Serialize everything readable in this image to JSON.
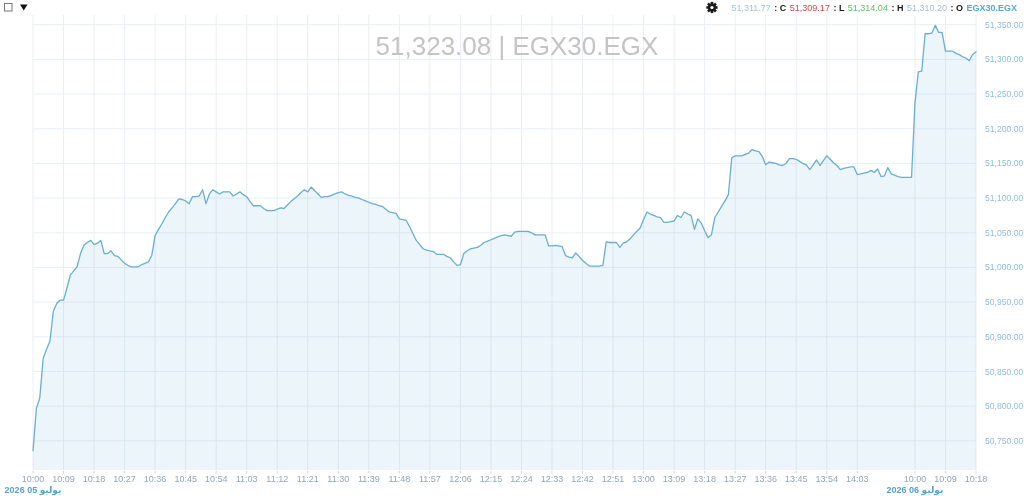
{
  "chart_data": {
    "type": "area",
    "title": "51,323.08 | EGX30.EGX",
    "categories": [
      "10:00\n2026 05 يوليو",
      null,
      null,
      null,
      null,
      null,
      null,
      null,
      null,
      "10:09",
      null,
      null,
      null,
      null,
      null,
      null,
      null,
      null,
      "10:18",
      null,
      null,
      null,
      null,
      null,
      null,
      null,
      null,
      "10:27",
      null,
      null,
      null,
      null,
      null,
      null,
      null,
      null,
      "10:36",
      null,
      null,
      null,
      null,
      null,
      null,
      null,
      null,
      "10:45",
      null,
      null,
      null,
      null,
      null,
      null,
      null,
      null,
      "10:54",
      null,
      null,
      null,
      null,
      null,
      null,
      null,
      null,
      "11:03",
      null,
      null,
      null,
      null,
      null,
      null,
      null,
      null,
      "11:12",
      null,
      null,
      null,
      null,
      null,
      null,
      null,
      null,
      "11:21",
      null,
      null,
      null,
      null,
      null,
      null,
      null,
      null,
      "11:30",
      null,
      null,
      null,
      null,
      null,
      null,
      null,
      null,
      "11:39",
      null,
      null,
      null,
      null,
      null,
      null,
      null,
      null,
      "11:48",
      null,
      null,
      null,
      null,
      null,
      null,
      null,
      null,
      "11:57",
      null,
      null,
      null,
      null,
      null,
      null,
      null,
      null,
      "12:06",
      null,
      null,
      null,
      null,
      null,
      null,
      null,
      null,
      "12:15",
      null,
      null,
      null,
      null,
      null,
      null,
      null,
      null,
      "12:24",
      null,
      null,
      null,
      null,
      null,
      null,
      null,
      null,
      "12:33",
      null,
      null,
      null,
      null,
      null,
      null,
      null,
      null,
      "12:42",
      null,
      null,
      null,
      null,
      null,
      null,
      null,
      null,
      "12:51",
      null,
      null,
      null,
      null,
      null,
      null,
      null,
      null,
      "13:00",
      null,
      null,
      null,
      null,
      null,
      null,
      null,
      null,
      "13:09",
      null,
      null,
      null,
      null,
      null,
      null,
      null,
      null,
      "13:18",
      null,
      null,
      null,
      null,
      null,
      null,
      null,
      null,
      "13:27",
      null,
      null,
      null,
      null,
      null,
      null,
      null,
      null,
      "13:36",
      null,
      null,
      null,
      null,
      null,
      null,
      null,
      null,
      "13:45",
      null,
      null,
      null,
      null,
      null,
      null,
      null,
      null,
      "13:54",
      null,
      null,
      null,
      null,
      null,
      null,
      null,
      null,
      "14:03",
      null,
      null,
      null,
      null,
      null,
      null,
      null,
      null,
      null,
      null,
      null,
      null,
      null,
      null,
      null,
      null,
      "10:00\n2026 06 يوليو",
      null,
      null,
      null,
      null,
      null,
      null,
      null,
      null,
      "10:09",
      null,
      null,
      null,
      null,
      null,
      null,
      null,
      null,
      "10:18"
    ],
    "series": [
      {
        "color": "#6aafd2",
        "values": [
          50736,
          50797,
          50812,
          50869,
          50882,
          50894,
          50937,
          50948,
          50953,
          50953,
          50970,
          50989,
          50995,
          51001,
          51020,
          51032,
          51036,
          51039,
          51033,
          51035,
          51039,
          51020,
          51020,
          51024,
          51017,
          51016,
          51011,
          51006,
          51003,
          51001,
          51001,
          51001,
          51004,
          51006,
          51008,
          51017,
          51046,
          51055,
          51063,
          51072,
          51080,
          51086,
          51092,
          51099,
          51098,
          51096,
          51092,
          51102,
          51102,
          51103,
          51112,
          51092,
          51106,
          51112,
          51109,
          51106,
          51109,
          51109,
          51109,
          51103,
          51106,
          51109,
          51105,
          51102,
          51095,
          51089,
          51089,
          51089,
          51085,
          51082,
          51082,
          51082,
          51084,
          51086,
          51085,
          51090,
          51095,
          51099,
          51103,
          51108,
          51112,
          51109,
          51116,
          51111,
          51106,
          51101,
          51102,
          51102,
          51104,
          51106,
          51108,
          51109,
          51106,
          51104,
          51103,
          51101,
          51100,
          51098,
          51096,
          51094,
          51092,
          51091,
          51089,
          51088,
          51084,
          51080,
          51079,
          51078,
          51070,
          51069,
          51068,
          51059,
          51049,
          51039,
          51033,
          51027,
          51025,
          51024,
          51023,
          51019,
          51019,
          51019,
          51016,
          51014,
          51008,
          51003,
          51004,
          51020,
          51024,
          51027,
          51028,
          51029,
          51032,
          51036,
          51038,
          51040,
          51042,
          51044,
          51046,
          51047,
          51046,
          51045,
          51051,
          51052,
          51052,
          51052,
          51052,
          51050,
          51047,
          51047,
          51047,
          51047,
          51031,
          51031,
          51032,
          51031,
          51030,
          51017,
          51015,
          51014,
          51021,
          51016,
          51010,
          51006,
          51002,
          51002,
          51002,
          51002,
          51003,
          51037,
          51036,
          51036,
          51036,
          51029,
          51035,
          51037,
          51041,
          51047,
          51052,
          51057,
          51069,
          51080,
          51077,
          51075,
          51073,
          51072,
          51065,
          51065,
          51066,
          51067,
          51075,
          51072,
          51080,
          51077,
          51075,
          51055,
          51070,
          51064,
          51053,
          51043,
          51047,
          51072,
          51080,
          51088,
          51096,
          51105,
          51158,
          51161,
          51161,
          51161,
          51163,
          51165,
          51170,
          51168,
          51167,
          51160,
          51148,
          51152,
          51151,
          51150,
          51148,
          51147,
          51150,
          51157,
          51157,
          51156,
          51153,
          51150,
          51148,
          51141,
          51148,
          51155,
          51147,
          51154,
          51161,
          51156,
          51151,
          51147,
          51141,
          51143,
          51144,
          51145,
          51145,
          51134,
          51135,
          51136,
          51137,
          51140,
          51137,
          51142,
          51131,
          51132,
          51144,
          51135,
          51133,
          51131,
          51130,
          51130,
          51130,
          51130,
          51237,
          51282,
          51283,
          51337,
          51337,
          51338,
          51349,
          51339,
          51339,
          51312,
          51312,
          51312,
          51309,
          51307,
          51304,
          51302,
          51298,
          51307,
          51311
        ]
      }
    ],
    "ylim": [
      50708,
      51364
    ],
    "yticks": [
      {
        "value": 50750,
        "label": "50,750.00"
      },
      {
        "value": 50800,
        "label": "50,800.00"
      },
      {
        "value": 50850,
        "label": "50,850.00"
      },
      {
        "value": 50900,
        "label": "50,900.00"
      },
      {
        "value": 50950,
        "label": "50,950.00"
      },
      {
        "value": 51000,
        "label": "51,000.00"
      },
      {
        "value": 51050,
        "label": "51,050.00"
      },
      {
        "value": 51100,
        "label": "51,100.00"
      },
      {
        "value": 51150,
        "label": "51,150.00"
      },
      {
        "value": 51200,
        "label": "51,200.00"
      },
      {
        "value": 51250,
        "label": "51,250.00"
      },
      {
        "value": 51300,
        "label": "51,300.00"
      },
      {
        "value": 51350,
        "label": "51,350.00"
      }
    ],
    "grid": true,
    "annotations": [
      "51,311.77",
      ": C",
      "51,309.17",
      ": L",
      "51,314.04",
      ": H",
      "51,310.20",
      ": O",
      "EGX30.EGX"
    ]
  }
}
